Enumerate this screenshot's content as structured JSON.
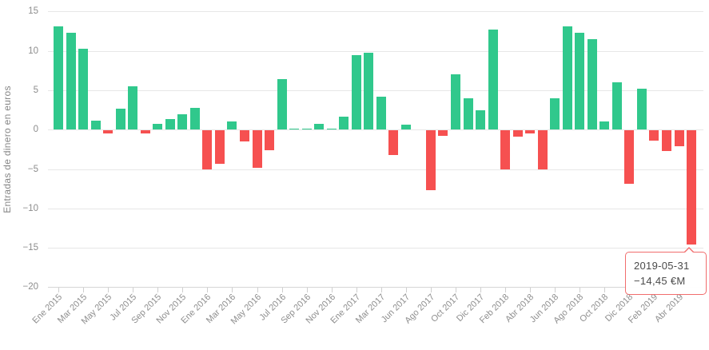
{
  "chart": {
    "y_axis": {
      "title": "Entradas de dinero en euros",
      "ticks": [
        "15",
        "10",
        "5",
        "0",
        "−5",
        "−10",
        "−15",
        "−20"
      ],
      "tick_values": [
        15,
        10,
        5,
        0,
        -5,
        -10,
        -15,
        -20
      ]
    },
    "x_axis": {
      "tick_labels": [
        "Ene 2015",
        "Mar 2015",
        "May 2015",
        "Jul 2015",
        "Sep 2015",
        "Nov 2015",
        "Ene 2016",
        "Mar 2016",
        "May 2016",
        "Jul 2016",
        "Sep 2016",
        "Nov 2016",
        "Ene 2017",
        "Mar 2017",
        "Jun 2017",
        "Ago 2017",
        "Oct 2017",
        "Dic 2017",
        "Feb 2018",
        "Abr 2018",
        "Jun 2018",
        "Ago 2018",
        "Oct 2018",
        "Dic 2018",
        "Feb 2019",
        "Abr 2019"
      ]
    },
    "tooltip": {
      "date": "2019-05-31",
      "value": "−14,45 €M"
    },
    "colors": {
      "positive": "#30c88c",
      "negative": "#f65050",
      "tooltip_border": "#f16d6d",
      "grid": "#e7e7e7",
      "axis_text": "#8e8e8e"
    }
  },
  "chart_data": {
    "type": "bar",
    "title": "",
    "xlabel": "",
    "ylabel": "Entradas de dinero en euros",
    "ylim": [
      -20,
      15
    ],
    "grid": "on",
    "legend": "none",
    "categories": [
      "Ene 2015",
      "Feb 2015",
      "Mar 2015",
      "Abr 2015",
      "May 2015",
      "Jun 2015",
      "Jul 2015",
      "Ago 2015",
      "Sep 2015",
      "Oct 2015",
      "Nov 2015",
      "Dic 2015",
      "Ene 2016",
      "Feb 2016",
      "Mar 2016",
      "Abr 2016",
      "May 2016",
      "Jun 2016",
      "Jul 2016",
      "Ago 2016",
      "Sep 2016",
      "Oct 2016",
      "Nov 2016",
      "Dic 2016",
      "Ene 2017",
      "Feb 2017",
      "Mar 2017",
      "Abr 2017",
      "Jun 2017",
      "Jul 2017",
      "Ago 2017",
      "Sep 2017",
      "Oct 2017",
      "Nov 2017",
      "Dic 2017",
      "Ene 2018",
      "Feb 2018",
      "Mar 2018",
      "Abr 2018",
      "May 2018",
      "Jun 2018",
      "Jul 2018",
      "Ago 2018",
      "Sep 2018",
      "Oct 2018",
      "Nov 2018",
      "Dic 2018",
      "Ene 2019",
      "Feb 2019",
      "Mar 2019",
      "Abr 2019",
      "May 2019"
    ],
    "values": [
      13.1,
      12.3,
      10.3,
      1.2,
      -0.4,
      2.7,
      5.5,
      -0.4,
      0.7,
      1.4,
      2.0,
      2.8,
      -4.9,
      -4.2,
      1.1,
      -1.4,
      -4.7,
      -2.5,
      6.4,
      0.15,
      0.1,
      0.7,
      0.1,
      1.7,
      9.5,
      9.8,
      4.2,
      -3.1,
      0.6,
      0,
      -7.6,
      -0.7,
      7.0,
      4.0,
      2.5,
      12.7,
      -4.9,
      -0.8,
      -0.4,
      -4.9,
      4.0,
      13.1,
      12.3,
      11.5,
      1.0,
      6.0,
      -6.8,
      5.2,
      -1.3,
      -2.6,
      -2.0,
      -14.45
    ],
    "highlighted_bar": {
      "category": "May 2019",
      "value": -14.45,
      "tooltip": "2019-05-31 −14,45 €M"
    }
  }
}
